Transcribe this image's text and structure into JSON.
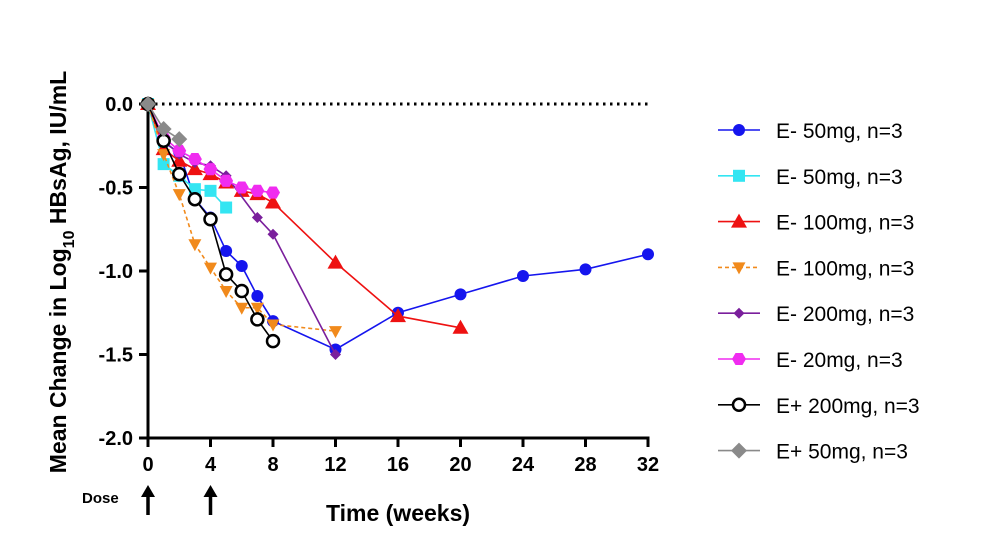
{
  "chart_data": {
    "type": "line",
    "xlabel": "Time (weeks)",
    "ylabel_parts": [
      "Mean Change in Log",
      "10",
      " HBsAg, IU/mL"
    ],
    "xlim": [
      0,
      32
    ],
    "ylim": [
      -2.0,
      0.0
    ],
    "xticks": [
      0,
      4,
      8,
      12,
      16,
      20,
      24,
      28,
      32
    ],
    "yticks": [
      0.0,
      -0.5,
      -1.0,
      -1.5,
      -2.0
    ],
    "ytick_labels": [
      "0.0",
      "-0.5",
      "-1.0",
      "-1.5",
      "-2.0"
    ],
    "reference_line_y": 0.0,
    "dose_label": "Dose",
    "dose_weeks": [
      0,
      4
    ],
    "series": [
      {
        "name": "E- 50mg, n=3",
        "color": "#1515ee",
        "marker": "circle",
        "dashed": false,
        "x": [
          0,
          1,
          2,
          3,
          4,
          5,
          6,
          7,
          8,
          12,
          16,
          20,
          24,
          28,
          32
        ],
        "y": [
          0.0,
          -0.23,
          -0.29,
          -0.57,
          -0.68,
          -0.88,
          -0.97,
          -1.15,
          -1.3,
          -1.47,
          -1.25,
          -1.14,
          -1.03,
          -0.99,
          -0.9
        ]
      },
      {
        "name": "E- 50mg, n=3",
        "color": "#33e5f2",
        "marker": "square",
        "dashed": false,
        "x": [
          0,
          1,
          2,
          3,
          4,
          5
        ],
        "y": [
          0.0,
          -0.36,
          -0.43,
          -0.51,
          -0.52,
          -0.62
        ]
      },
      {
        "name": "E- 100mg, n=3",
        "color": "#ee1111",
        "marker": "triangle-up",
        "dashed": false,
        "x": [
          0,
          1,
          2,
          3,
          4,
          5,
          6,
          7,
          8,
          12,
          16,
          20
        ],
        "y": [
          0.0,
          -0.27,
          -0.34,
          -0.39,
          -0.42,
          -0.47,
          -0.52,
          -0.54,
          -0.59,
          -0.95,
          -1.27,
          -1.34
        ]
      },
      {
        "name": "E- 100mg, n=3",
        "color": "#f18a1c",
        "marker": "triangle-down",
        "dashed": true,
        "x": [
          0,
          1,
          2,
          3,
          4,
          5,
          6,
          7,
          8,
          12
        ],
        "y": [
          0.0,
          -0.3,
          -0.54,
          -0.84,
          -0.98,
          -1.12,
          -1.22,
          -1.22,
          -1.32,
          -1.36
        ]
      },
      {
        "name": "E- 200mg, n=3",
        "color": "#7a1f9c",
        "marker": "diamond",
        "dashed": false,
        "x": [
          0,
          1,
          2,
          3,
          4,
          5,
          7,
          8,
          12
        ],
        "y": [
          0.0,
          -0.22,
          -0.3,
          -0.35,
          -0.37,
          -0.43,
          -0.68,
          -0.78,
          -1.5
        ]
      },
      {
        "name": "E- 20mg, n=3",
        "color": "#f02cf0",
        "marker": "hexagon",
        "dashed": false,
        "x": [
          0,
          1,
          2,
          3,
          4,
          5,
          6,
          7,
          8
        ],
        "y": [
          0.0,
          -0.2,
          -0.28,
          -0.33,
          -0.39,
          -0.46,
          -0.5,
          -0.52,
          -0.53
        ]
      },
      {
        "name": "E+ 200mg, n=3",
        "color": "#000000",
        "marker": "open-circle",
        "dashed": false,
        "x": [
          0,
          1,
          2,
          3,
          4,
          5,
          6,
          7,
          8
        ],
        "y": [
          0.0,
          -0.22,
          -0.42,
          -0.57,
          -0.69,
          -1.02,
          -1.12,
          -1.29,
          -1.42
        ]
      },
      {
        "name": "E+ 50mg, n=3",
        "color": "#8a8a8a",
        "marker": "diamond-large",
        "dashed": false,
        "x": [
          0,
          1,
          2
        ],
        "y": [
          0.0,
          -0.15,
          -0.21
        ]
      }
    ]
  }
}
